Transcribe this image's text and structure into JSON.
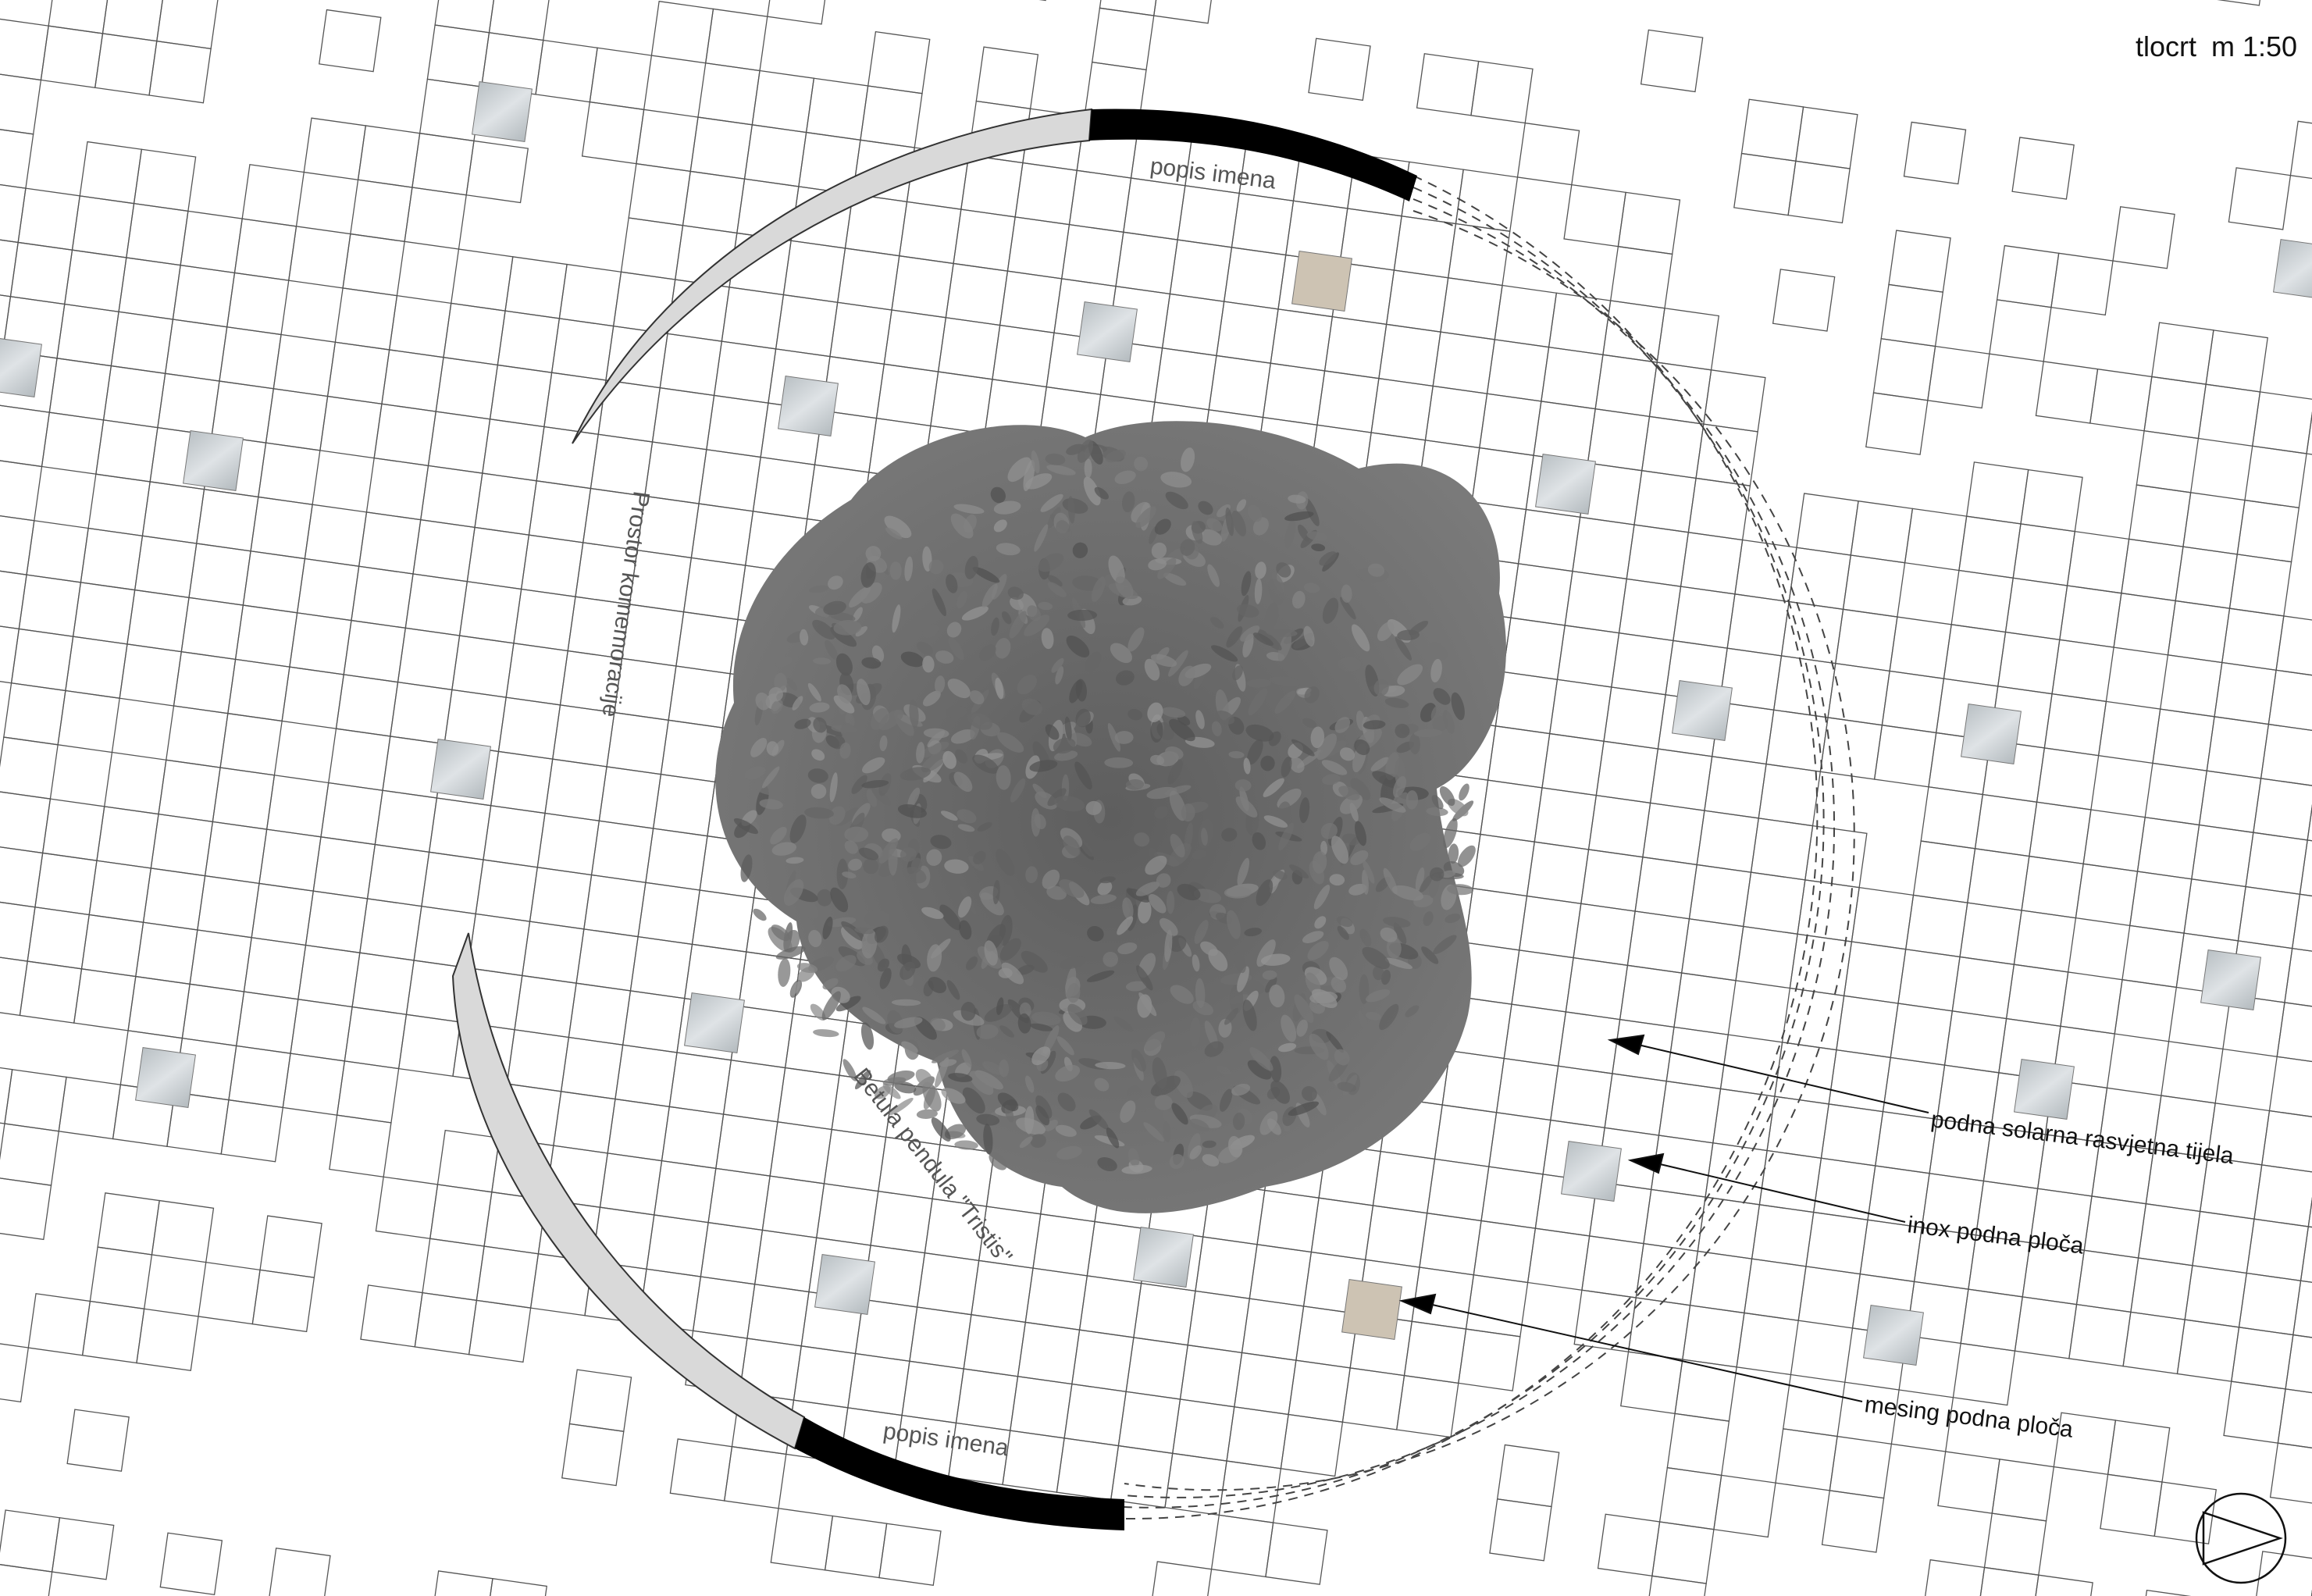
{
  "drawing": {
    "title": "tlocrt",
    "scale": "m 1:50"
  },
  "labels": {
    "names_list_top": "popis imena",
    "names_list_bottom": "popis imena",
    "commemoration_space": "Prostor komemoracije",
    "tree_species": "Betula pendula \"Tristis\""
  },
  "legend": [
    {
      "id": "solar",
      "text": "podna  solarna rasvjetna tijela"
    },
    {
      "id": "inox",
      "text": "inox podna ploča"
    },
    {
      "id": "brass",
      "text": "mesing podna ploča"
    }
  ],
  "colors": {
    "grid_line": "#555555",
    "wall_fill": "#d9d9d9",
    "names_band": "#000000",
    "inox_tile": "#c9cfd3",
    "brass_tile": "#cdc3b3",
    "tree_canopy": "#6f6f6f",
    "dashed_ring": "#444444"
  },
  "icons": {
    "north_arrow": "north-arrow-icon"
  }
}
